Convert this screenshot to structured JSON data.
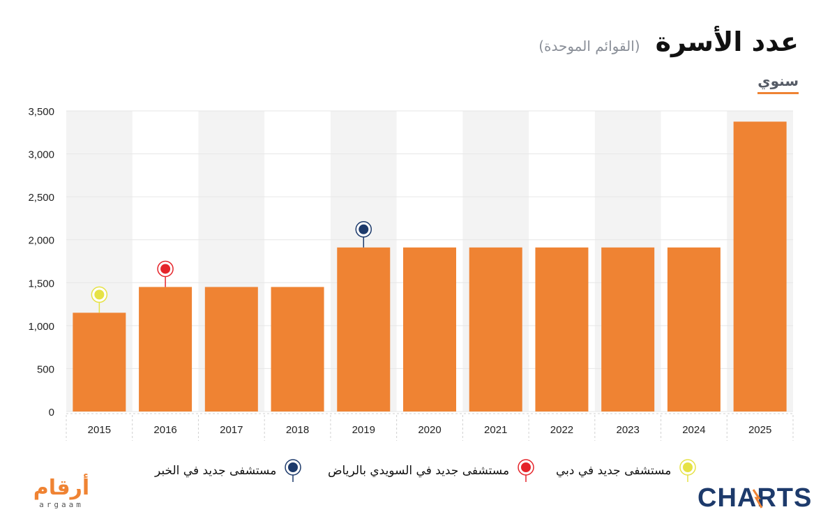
{
  "header": {
    "title": "عدد الأسرة",
    "subtitle": "(القوائم الموحدة)",
    "tab_label": "سنوي"
  },
  "colors": {
    "bar": "#ef8333",
    "band": "#f3f3f3",
    "grid": "#e6e6e6",
    "axis_text": "#222222",
    "marker_yellow": "#e6e245",
    "marker_red": "#e5242a",
    "marker_navy": "#1d3a6b",
    "brand_navy": "#1d3a6b",
    "brand_orange": "#ef8333"
  },
  "chart_data": {
    "type": "bar",
    "categories": [
      "2015",
      "2016",
      "2017",
      "2018",
      "2019",
      "2020",
      "2021",
      "2022",
      "2023",
      "2024",
      "2025"
    ],
    "values": [
      1150,
      1450,
      1450,
      1450,
      1910,
      1910,
      1910,
      1910,
      1910,
      1910,
      3375
    ],
    "ylim": [
      0,
      3500
    ],
    "yticks": [
      0,
      500,
      1000,
      1500,
      2000,
      2500,
      3000,
      3500
    ],
    "ytick_labels": [
      "0",
      "500",
      "1,000",
      "1,500",
      "2,000",
      "2,500",
      "3,000",
      "3,500"
    ],
    "grid": true,
    "annotations": [
      {
        "category": "2015",
        "marker": "yellow"
      },
      {
        "category": "2016",
        "marker": "red"
      },
      {
        "category": "2019",
        "marker": "navy"
      }
    ]
  },
  "legend": [
    {
      "label": "مستشفى جديد في الخبر",
      "marker": "navy"
    },
    {
      "label": "مستشفى جديد في السويدي بالرياض",
      "marker": "red"
    },
    {
      "label": "مستشفى جديد في دبي",
      "marker": "yellow"
    }
  ],
  "logos": {
    "arqaam_main": "أرقام",
    "arqaam_latin": "argaam",
    "charts": "CHARTS"
  }
}
